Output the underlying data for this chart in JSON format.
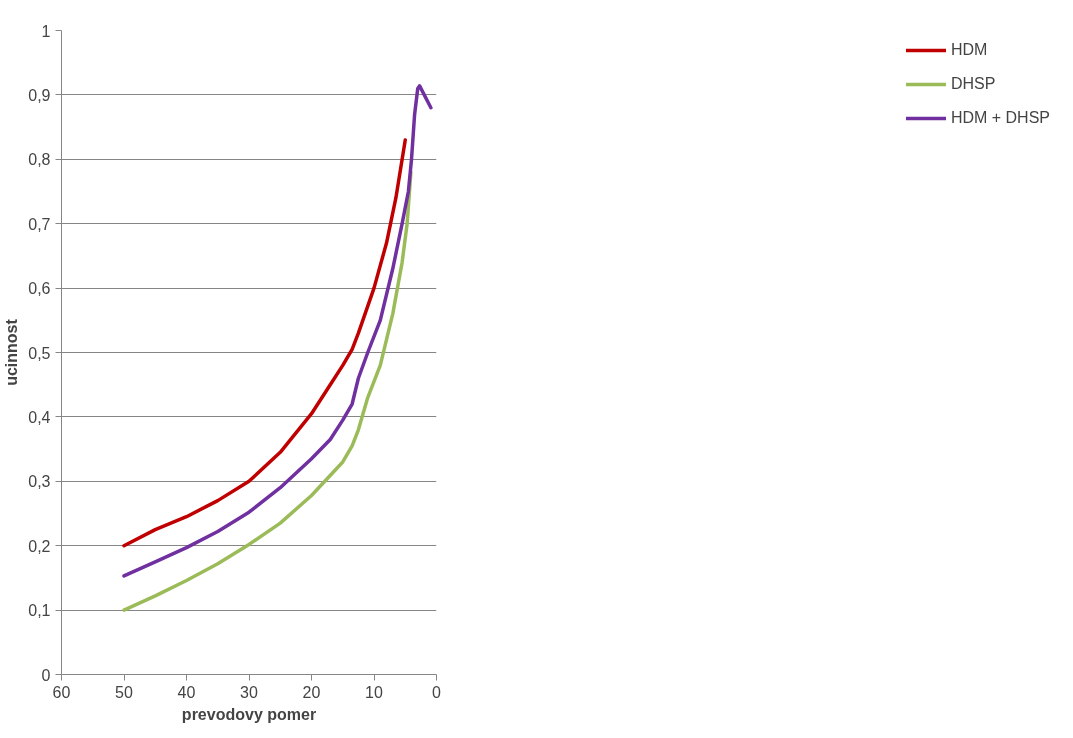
{
  "chart_data": {
    "type": "line",
    "xlabel": "prevodovy pomer",
    "ylabel": "ucinnost",
    "xlim": [
      60,
      0
    ],
    "xticks": [
      60,
      50,
      40,
      30,
      20,
      10,
      0
    ],
    "ylim": [
      0,
      1
    ],
    "yticks": [
      0,
      {
        "value": 0.1,
        "label": "0,1"
      },
      {
        "value": 0.2,
        "label": "0,2"
      },
      {
        "value": 0.3,
        "label": "0,3"
      },
      {
        "value": 0.4,
        "label": "0,4"
      },
      {
        "value": 0.5,
        "label": "0,5"
      },
      {
        "value": 0.6,
        "label": "0,6"
      },
      {
        "value": 0.7,
        "label": "0,7"
      },
      {
        "value": 0.8,
        "label": "0,8"
      },
      {
        "value": 0.9,
        "label": "0,9"
      },
      1
    ],
    "grid": "y",
    "legend": "right",
    "marker": "none",
    "line_style": "solid",
    "series": [
      {
        "name": "HDM",
        "color": "#c00000",
        "x": [
          50,
          45,
          40,
          35,
          30,
          25,
          20,
          17,
          15,
          13.5,
          12.5,
          10,
          8,
          6.5,
          5
        ],
        "values": [
          0.2,
          0.225,
          0.245,
          0.27,
          0.3,
          0.345,
          0.405,
          0.45,
          0.48,
          0.505,
          0.53,
          0.6,
          0.67,
          0.74,
          0.83
        ]
      },
      {
        "name": "DHSP",
        "color": "#9bbb59",
        "x": [
          50,
          45,
          40,
          35,
          30,
          25,
          20,
          15,
          13.5,
          12.5,
          11,
          9,
          7,
          5.5,
          4.7,
          4.1
        ],
        "values": [
          0.1,
          0.122,
          0.146,
          0.172,
          0.202,
          0.235,
          0.278,
          0.33,
          0.355,
          0.38,
          0.43,
          0.48,
          0.56,
          0.64,
          0.7,
          0.78
        ]
      },
      {
        "name": "HDM + DHSP",
        "color": "#7030a0",
        "x": [
          50,
          45,
          40,
          35,
          30,
          25,
          20,
          17,
          15,
          13.5,
          12.5,
          11,
          9,
          7,
          5.5,
          4.5,
          4,
          3.5,
          3,
          2.7,
          0.9
        ],
        "values": [
          0.153,
          0.175,
          0.197,
          0.222,
          0.252,
          0.29,
          0.335,
          0.365,
          0.395,
          0.42,
          0.46,
          0.5,
          0.55,
          0.63,
          0.7,
          0.75,
          0.8,
          0.87,
          0.91,
          0.914,
          0.88
        ]
      }
    ]
  }
}
